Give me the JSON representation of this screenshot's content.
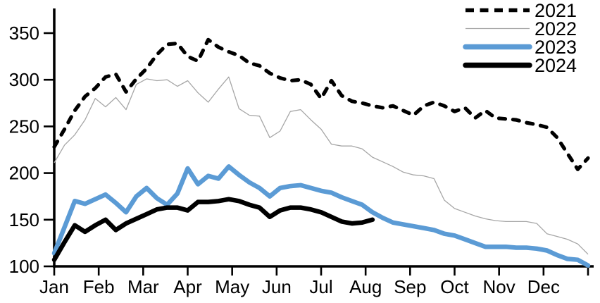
{
  "chart_data": {
    "type": "line",
    "title": "",
    "xlabel": "",
    "ylabel": "",
    "x_axis": {
      "tick_labels": [
        "Jan",
        "Feb",
        "Mar",
        "Apr",
        "May",
        "Jun",
        "Jul",
        "Aug",
        "Sep",
        "Oct",
        "Nov",
        "Dec"
      ],
      "points_per_full_year": 53,
      "unit": "weekly observations"
    },
    "y_axis": {
      "ticks": [
        100,
        150,
        200,
        250,
        300,
        350
      ],
      "range": [
        100,
        375
      ],
      "grid": false
    },
    "legend": {
      "position": "top-right",
      "entries": [
        "2021",
        "2022",
        "2023",
        "2024"
      ]
    },
    "colors": {
      "black": "#000000",
      "gray": "#a6a6a6",
      "blue": "#5b9bd5"
    },
    "series": [
      {
        "name": "2022",
        "color": "#a6a6a6",
        "line_style": "solid",
        "weight": "thin",
        "values": [
          211,
          230,
          241,
          257,
          280,
          271,
          281,
          268,
          295,
          301,
          299,
          300,
          293,
          299,
          286,
          276,
          290,
          303,
          269,
          262,
          261,
          238,
          245,
          266,
          268,
          257,
          247,
          231,
          229,
          229,
          226,
          217,
          212,
          207,
          201,
          198,
          197,
          194,
          171,
          162,
          158,
          154,
          151,
          149,
          148,
          148,
          148,
          146,
          135,
          132,
          129,
          124,
          113
        ]
      },
      {
        "name": "2021",
        "color": "#000000",
        "line_style": "dashed",
        "weight": "medium",
        "values": [
          228,
          247,
          267,
          282,
          291,
          303,
          306,
          287,
          301,
          312,
          327,
          338,
          339,
          325,
          320,
          343,
          335,
          330,
          326,
          318,
          315,
          307,
          302,
          299,
          300,
          295,
          280,
          299,
          283,
          277,
          275,
          272,
          270,
          272,
          267,
          262,
          272,
          276,
          272,
          266,
          270,
          259,
          267,
          259,
          258,
          257,
          254,
          252,
          249,
          238,
          221,
          204,
          216
        ]
      },
      {
        "name": "2023",
        "color": "#5b9bd5",
        "line_style": "solid",
        "weight": "thick",
        "values": [
          114,
          142,
          170,
          167,
          172,
          177,
          168,
          158,
          175,
          184,
          173,
          166,
          178,
          205,
          188,
          197,
          194,
          207,
          198,
          190,
          184,
          175,
          184,
          186,
          187,
          184,
          181,
          179,
          174,
          170,
          166,
          158,
          152,
          147,
          145,
          143,
          141,
          139,
          135,
          133,
          129,
          125,
          121,
          121,
          121,
          120,
          120,
          119,
          117,
          112,
          108,
          107,
          101
        ]
      },
      {
        "name": "2024",
        "color": "#000000",
        "line_style": "solid",
        "weight": "thick",
        "values": [
          107,
          126,
          144,
          137,
          144,
          150,
          139,
          146,
          151,
          156,
          161,
          163,
          163,
          160,
          169,
          169,
          170,
          172,
          170,
          166,
          163,
          153,
          160,
          163,
          163,
          161,
          158,
          153,
          148,
          146,
          147,
          150
        ]
      }
    ],
    "legend_order": [
      "2021",
      "2022",
      "2023",
      "2024"
    ]
  }
}
